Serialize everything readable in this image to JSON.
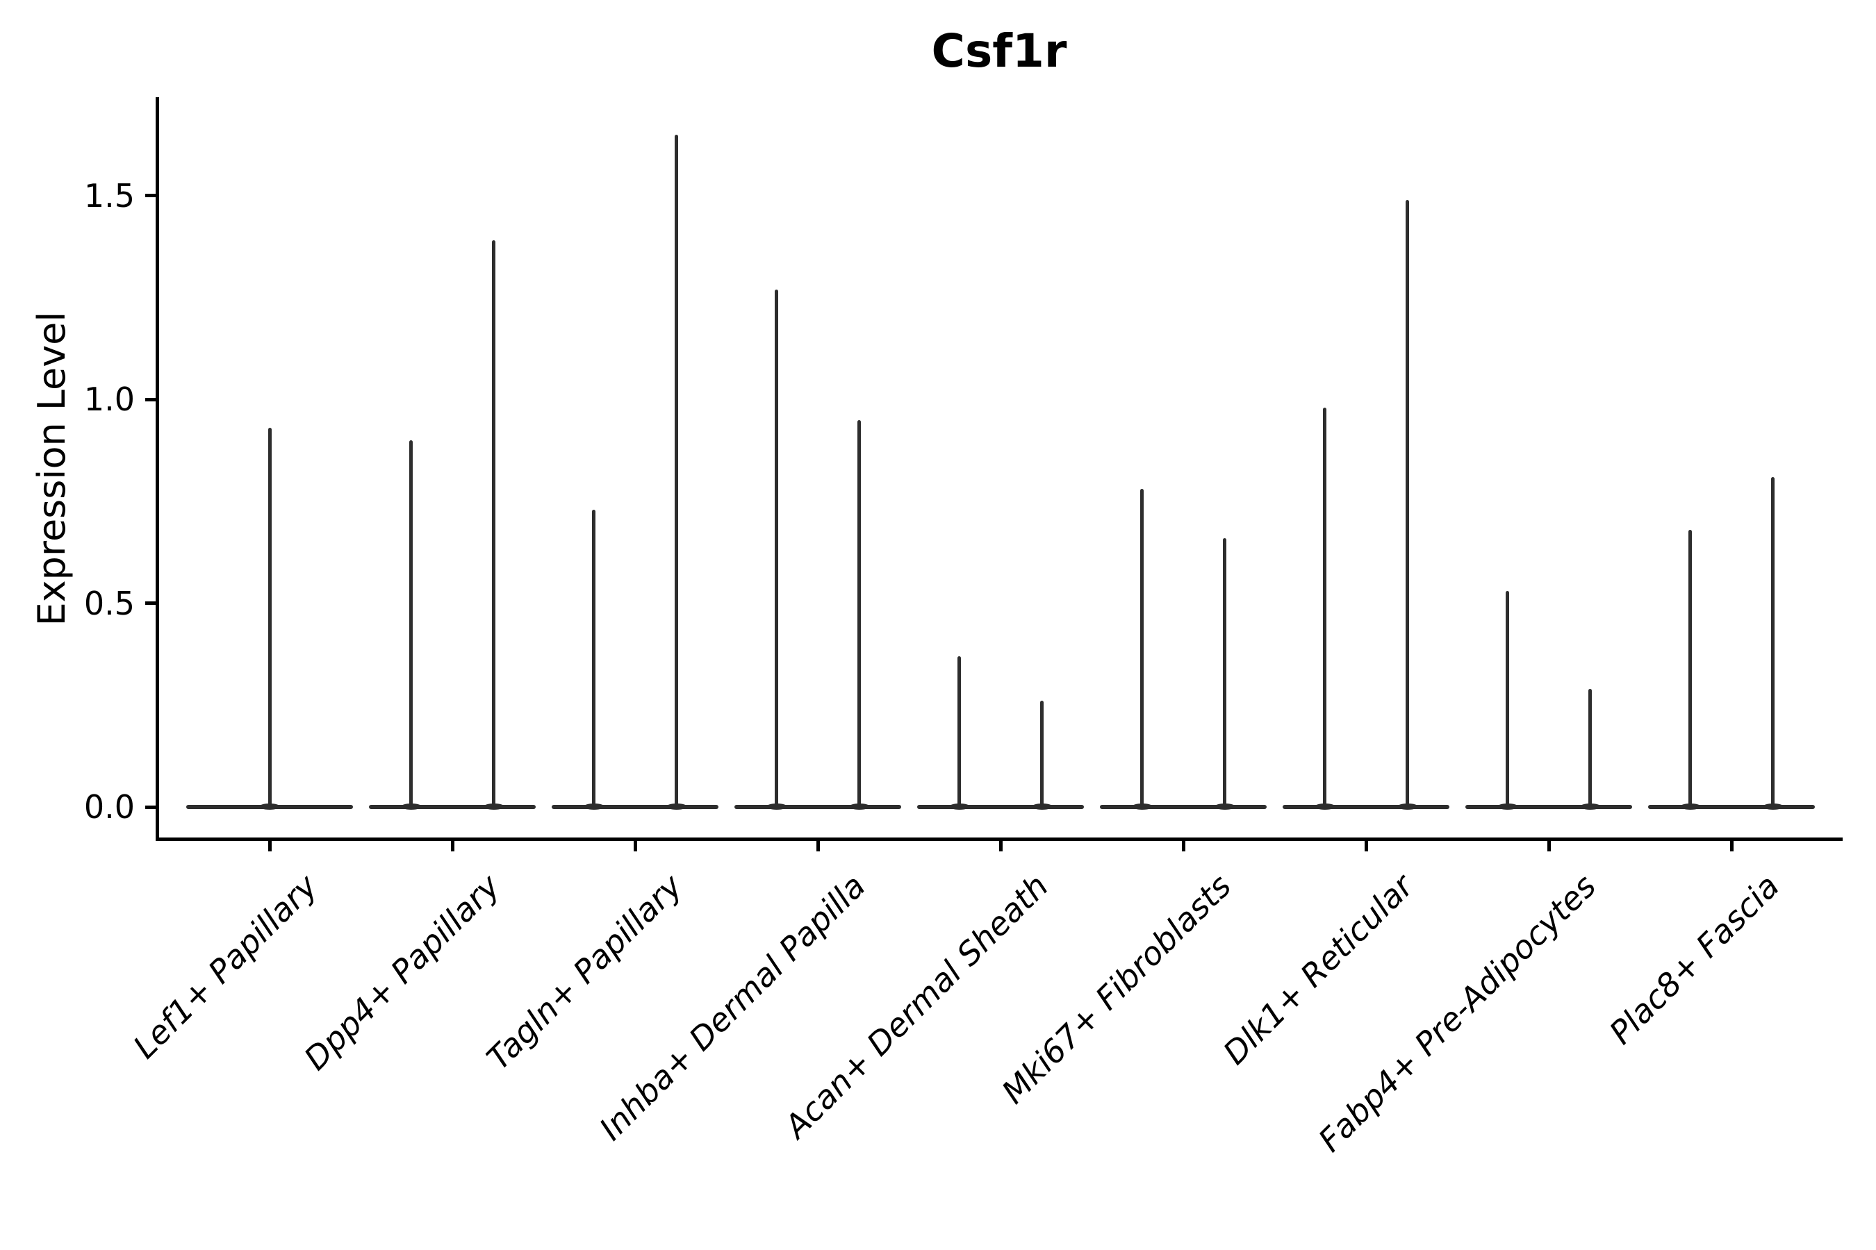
{
  "figure_title": "Csf1r",
  "chart_data": {
    "type": "violin",
    "title": "Csf1r",
    "xlabel": "",
    "ylabel": "Expression Level",
    "ylim": [
      -0.08,
      1.74
    ],
    "yticks": [
      0.0,
      0.5,
      1.0,
      1.5
    ],
    "ytick_labels": [
      "0.0",
      "0.5",
      "1.0",
      "1.5"
    ],
    "grid": false,
    "legend": "none",
    "style": {
      "line_color": "#2d2d2d",
      "axis_color": "#000000",
      "background": "#ffffff",
      "x_tick_label_style": "italic",
      "x_tick_label_rotation_deg": 45,
      "title_bold": true
    },
    "categories": [
      "Lef1+ Papillary",
      "Dpp4+ Papillary",
      "Tagln+ Papillary",
      "Inhba+ Dermal Papilla",
      "Acan+ Dermal Sheath",
      "Mki67+ Fibroblasts",
      "Dlk1+ Reticular",
      "Fabp4+ Pre-Adipocytes",
      "Plac8+ Fascia"
    ],
    "violins": [
      {
        "category": "Lef1+ Papillary",
        "spike_maxima": [
          0.93
        ]
      },
      {
        "category": "Dpp4+ Papillary",
        "spike_maxima": [
          0.9,
          1.39
        ]
      },
      {
        "category": "Tagln+ Papillary",
        "spike_maxima": [
          0.73,
          1.65
        ]
      },
      {
        "category": "Inhba+ Dermal Papilla",
        "spike_maxima": [
          1.27,
          0.95
        ]
      },
      {
        "category": "Acan+ Dermal Sheath",
        "spike_maxima": [
          0.37,
          0.26
        ]
      },
      {
        "category": "Mki67+ Fibroblasts",
        "spike_maxima": [
          0.78,
          0.66
        ]
      },
      {
        "category": "Dlk1+ Reticular",
        "spike_maxima": [
          0.98,
          1.49
        ]
      },
      {
        "category": "Fabp4+ Pre-Adipocytes",
        "spike_maxima": [
          0.53,
          0.29
        ]
      },
      {
        "category": "Plac8+ Fascia",
        "spike_maxima": [
          0.68,
          0.81
        ]
      }
    ]
  }
}
